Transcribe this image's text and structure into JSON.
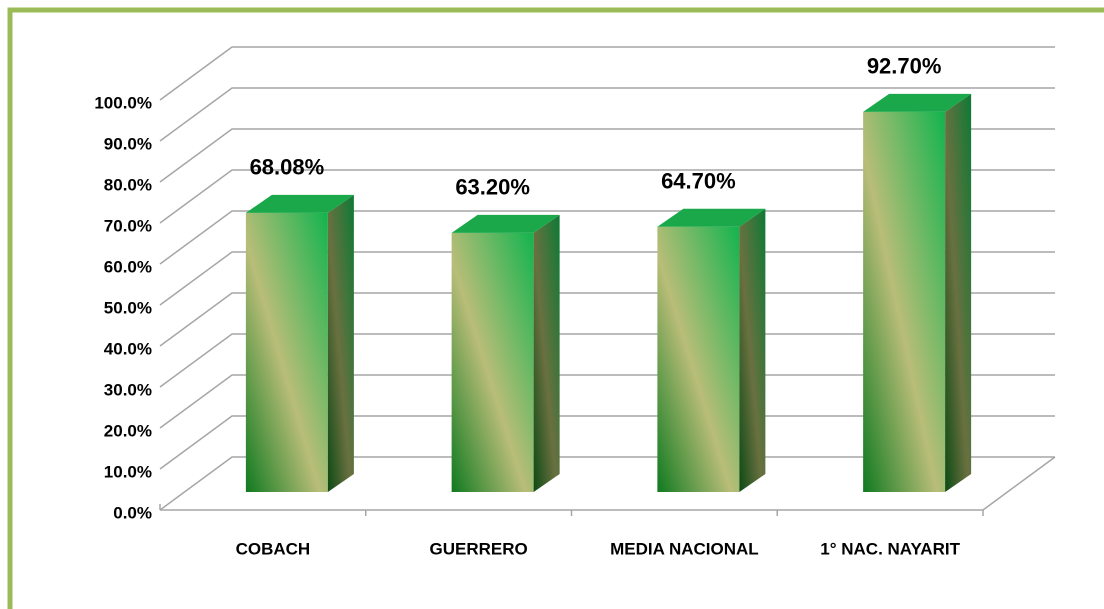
{
  "chart_data": {
    "type": "bar3d",
    "categories": [
      "COBACH",
      "GUERRERO",
      "MEDIA NACIONAL",
      "1° NAC. NAYARIT"
    ],
    "values": [
      68.08,
      63.2,
      64.7,
      92.7
    ],
    "value_labels": [
      "68.08%",
      "63.20%",
      "64.70%",
      "92.70%"
    ],
    "color": "#1aa84a",
    "ylim": [
      0,
      100
    ],
    "yticks": [
      {
        "value": 0,
        "label": "0.0%"
      },
      {
        "value": 10,
        "label": "10.0%"
      },
      {
        "value": 20,
        "label": "20.0%"
      },
      {
        "value": 30,
        "label": "30.0%"
      },
      {
        "value": 40,
        "label": "40.0%"
      },
      {
        "value": 50,
        "label": "50.0%"
      },
      {
        "value": 60,
        "label": "60.0%"
      },
      {
        "value": 70,
        "label": "70.0%"
      },
      {
        "value": 80,
        "label": "80.0%"
      },
      {
        "value": 90,
        "label": "90.0%"
      },
      {
        "value": 100,
        "label": "100.0%"
      }
    ],
    "grid": true
  }
}
